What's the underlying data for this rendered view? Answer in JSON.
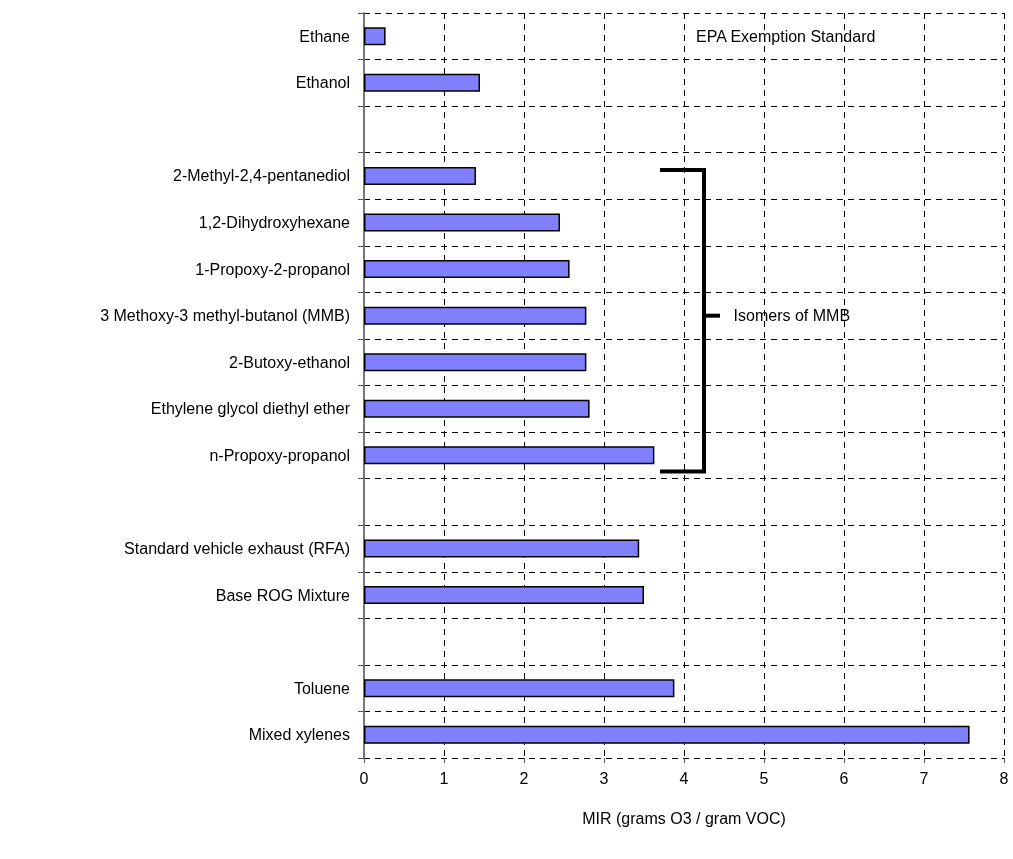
{
  "chart_data": {
    "type": "bar",
    "orientation": "horizontal",
    "xlabel": "MIR (grams O3 / gram VOC)",
    "categories": [
      "Ethane",
      "Ethanol",
      null,
      "2-Methyl-2,4-pentanediol",
      "1,2-Dihydroxyhexane",
      "1-Propoxy-2-propanol",
      "3 Methoxy-3 methyl-butanol (MMB)",
      "2-Butoxy-ethanol",
      "Ethylene glycol diethyl ether",
      "n-Propoxy-propanol",
      null,
      "Standard vehicle exhaust (RFA)",
      "Base ROG Mixture",
      null,
      "Toluene",
      "Mixed xylenes"
    ],
    "values": [
      0.27,
      1.45,
      null,
      1.4,
      2.45,
      2.57,
      2.78,
      2.78,
      2.82,
      3.63,
      null,
      3.44,
      3.5,
      null,
      3.88,
      7.57
    ],
    "color": "#8080ff",
    "xlim": [
      0,
      8
    ],
    "xticks": [
      0,
      1,
      2,
      3,
      4,
      5,
      6,
      7,
      8
    ],
    "grid": true,
    "annotations": [
      "EPA Exemption Standard",
      "Isomers of MMB"
    ]
  }
}
